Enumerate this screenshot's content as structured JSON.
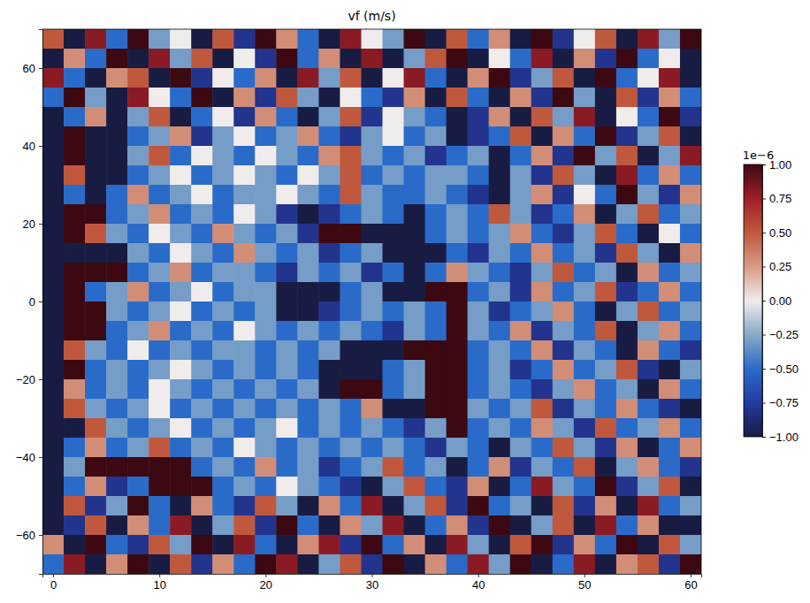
{
  "chart_data": {
    "type": "heatmap",
    "title": "vf (m/s)",
    "xlim": [
      -1,
      61
    ],
    "ylim": [
      -70,
      70
    ],
    "xticks": [
      0,
      10,
      20,
      30,
      40,
      50,
      60
    ],
    "yticks": [
      {
        "value": -60,
        "label": "−60"
      },
      {
        "value": -40,
        "label": "−40"
      },
      {
        "value": -20,
        "label": "−20"
      },
      0,
      20,
      40,
      60
    ],
    "x_edges": [
      -1,
      1,
      3,
      5,
      7,
      9,
      11,
      13,
      15,
      17,
      19,
      21,
      23,
      25,
      27,
      29,
      31,
      33,
      35,
      37,
      39,
      41,
      43,
      45,
      47,
      49,
      51,
      53,
      55,
      57,
      59,
      61
    ],
    "y_edges": [
      70,
      65,
      60,
      55,
      50,
      45,
      40,
      35,
      30,
      25,
      20,
      15,
      10,
      5,
      0,
      -5,
      -10,
      -15,
      -20,
      -25,
      -30,
      -35,
      -40,
      -45,
      -50,
      -55,
      -60,
      -65,
      -70
    ],
    "cells": [
      [
        0.5,
        -1,
        0.8,
        -0.5,
        1,
        -0.3,
        0,
        -1,
        0.5,
        -0.8,
        1,
        0.3,
        -0.5,
        -1,
        0.8,
        0,
        -0.3,
        1,
        -1,
        0.5,
        -0.5,
        0.3,
        -1,
        1,
        -0.8,
        0,
        0.5,
        -1,
        0.8,
        -0.3,
        1
      ],
      [
        -1,
        0.3,
        -0.5,
        1,
        -1,
        0.8,
        -0.3,
        0.5,
        -1,
        0,
        -0.8,
        1,
        -0.5,
        0.3,
        -1,
        0.8,
        -1,
        -0.3,
        0.5,
        1,
        -1,
        0,
        -0.5,
        0.8,
        -1,
        0.3,
        -0.8,
        1,
        -0.5,
        0,
        -1
      ],
      [
        0.8,
        -0.5,
        -1,
        0.3,
        0.5,
        -1,
        1,
        -0.8,
        0,
        -0.5,
        0.3,
        -1,
        0.8,
        -0.3,
        0.5,
        -1,
        0,
        0.8,
        -0.5,
        -1,
        0.3,
        1,
        -0.8,
        -0.3,
        0.5,
        -1,
        1,
        -0.5,
        0,
        0.8,
        -1
      ],
      [
        -0.5,
        1,
        -0.3,
        -1,
        0.8,
        0,
        -0.5,
        1,
        -1,
        0.3,
        -0.8,
        0.5,
        -0.3,
        -1,
        0,
        -0.5,
        -0.8,
        0.3,
        -1,
        0.5,
        -0.5,
        -1,
        0.3,
        -0.8,
        1,
        -0.3,
        -1,
        0.5,
        -0.8,
        0.3,
        -0.5
      ],
      [
        -1,
        -0.5,
        0.3,
        -1,
        -0.3,
        0.5,
        -1,
        -0.5,
        0,
        -0.8,
        0.3,
        -0.5,
        -1,
        -0.3,
        0.5,
        -0.8,
        0,
        -0.3,
        -0.5,
        -1,
        -0.8,
        0.3,
        -1,
        0.5,
        -0.3,
        0.8,
        -1,
        0,
        -0.5,
        1,
        -0.8
      ],
      [
        -1,
        1,
        -1,
        -1,
        -0.5,
        -0.3,
        0.3,
        -0.8,
        -0.3,
        0,
        -0.5,
        -0.3,
        0.3,
        -0.5,
        -0.8,
        -0.3,
        0,
        -0.5,
        -0.3,
        -1,
        -0.8,
        -0.5,
        0.5,
        -1,
        0.3,
        -0.5,
        1,
        -0.8,
        -0.3,
        0.5,
        -1
      ],
      [
        -1,
        1,
        -1,
        -1,
        -0.3,
        0.5,
        -0.5,
        0,
        -0.3,
        -0.5,
        0,
        -0.3,
        -0.5,
        0.3,
        0.5,
        -0.3,
        -0.5,
        -0.3,
        -0.8,
        -0.5,
        -0.3,
        -1,
        -0.5,
        0.3,
        -0.8,
        1,
        -0.3,
        0.5,
        -1,
        -0.3,
        0.8
      ],
      [
        -1,
        0.5,
        -1,
        -1,
        -0.5,
        -0.3,
        0,
        -0.5,
        -0.3,
        0,
        -0.3,
        -0.5,
        0,
        -0.3,
        0.5,
        -0.5,
        -0.3,
        -0.5,
        -0.3,
        -0.3,
        -0.5,
        -1,
        -0.3,
        -0.8,
        0.5,
        -0.3,
        -1,
        0.8,
        -0.5,
        0.3,
        -0.5
      ],
      [
        -1,
        -0.5,
        -1,
        -0.5,
        0.3,
        -0.5,
        -0.3,
        0,
        -0.5,
        -0.3,
        -0.3,
        0,
        -0.3,
        -0.5,
        0.5,
        -0.3,
        -0.5,
        -0.5,
        -0.3,
        -0.5,
        -0.8,
        -1,
        -0.3,
        0.3,
        -0.8,
        0,
        -0.5,
        1,
        -0.3,
        -0.8,
        0.3
      ],
      [
        -1,
        1,
        1,
        -0.5,
        -0.3,
        0.3,
        -0.5,
        -0.3,
        -0.5,
        0,
        -0.3,
        -0.8,
        -1,
        -0.8,
        -0.5,
        -0.3,
        -0.5,
        -1,
        -0.5,
        -0.3,
        -0.5,
        0.5,
        -0.3,
        -0.8,
        -0.5,
        0.3,
        -1,
        -0.3,
        0.5,
        -0.5,
        -0.3
      ],
      [
        -1,
        1,
        0.5,
        -0.3,
        -0.5,
        0,
        -0.3,
        -0.5,
        0.3,
        -0.3,
        -0.5,
        -0.3,
        -0.8,
        1,
        1,
        -1,
        -1,
        -1,
        -0.5,
        -0.3,
        -0.5,
        -0.3,
        0.3,
        -0.5,
        -0.8,
        -0.3,
        0.5,
        -0.5,
        -1,
        0,
        -0.5
      ],
      [
        -1,
        -1,
        -1,
        -1,
        -0.3,
        -0.5,
        0,
        -0.3,
        -0.5,
        0.3,
        -0.3,
        -0.5,
        -0.3,
        -0.8,
        -0.5,
        -0.3,
        -1,
        -1,
        -1,
        -0.5,
        -0.8,
        -0.3,
        -0.5,
        0.3,
        -0.5,
        -0.3,
        -0.8,
        0.5,
        -0.3,
        -1,
        0.3
      ],
      [
        -1,
        1,
        1,
        1,
        -0.5,
        -0.3,
        0.3,
        -0.5,
        -0.3,
        -0.3,
        -0.5,
        -0.8,
        -0.3,
        -0.5,
        -0.3,
        -0.8,
        -0.5,
        -1,
        -0.5,
        0.3,
        -0.3,
        -0.5,
        -0.8,
        -0.3,
        0.5,
        -0.5,
        -0.3,
        -1,
        0.3,
        -0.5,
        -0.3
      ],
      [
        -1,
        1,
        -0.5,
        -0.3,
        0.3,
        -0.5,
        -0.3,
        0,
        -0.5,
        -0.3,
        -0.3,
        -1,
        -1,
        -1,
        -0.5,
        -0.3,
        -1,
        -1,
        1,
        1,
        -0.5,
        -0.3,
        -0.8,
        0.3,
        -0.5,
        -0.3,
        0.5,
        -0.8,
        -0.5,
        0.3,
        -0.5
      ],
      [
        -1,
        1,
        1,
        -0.3,
        -0.5,
        -0.3,
        0,
        -0.5,
        -0.3,
        -0.5,
        -0.3,
        -1,
        -1,
        -0.8,
        -0.5,
        -0.3,
        -0.5,
        -0.3,
        -0.5,
        1,
        -0.3,
        -0.8,
        -0.5,
        -0.3,
        0.3,
        -0.5,
        -1,
        -0.3,
        0.5,
        -0.5,
        -0.3
      ],
      [
        -1,
        1,
        1,
        -0.5,
        -0.3,
        0.3,
        -0.5,
        -0.3,
        -0.5,
        0,
        -0.3,
        -0.5,
        -0.3,
        -0.5,
        -0.3,
        -0.5,
        -0.8,
        -0.3,
        -0.5,
        1,
        -0.3,
        -0.5,
        0.3,
        -0.8,
        -0.3,
        -0.5,
        0.5,
        -1,
        -0.3,
        0.3,
        -0.5
      ],
      [
        -1,
        0.5,
        -0.3,
        -0.5,
        0,
        -0.5,
        -0.3,
        -0.5,
        -0.3,
        -0.3,
        -0.5,
        -0.3,
        -0.5,
        -0.3,
        -1,
        -1,
        -1,
        1,
        1,
        1,
        -0.5,
        -0.3,
        -0.5,
        0.3,
        -0.8,
        -0.3,
        -0.5,
        -1,
        0.3,
        -0.5,
        -0.8
      ],
      [
        -1,
        1,
        -0.5,
        -0.3,
        -0.5,
        -0.3,
        0,
        -0.3,
        -0.5,
        -0.3,
        -0.5,
        -0.3,
        -0.5,
        -1,
        -1,
        -1,
        -0.5,
        -0.3,
        1,
        1,
        -0.5,
        -0.3,
        -0.8,
        -0.5,
        0.3,
        -0.5,
        -0.3,
        0.5,
        -0.8,
        -1,
        -0.3
      ],
      [
        -1,
        0.3,
        -0.5,
        -0.3,
        -0.5,
        0,
        -0.3,
        -0.5,
        -0.3,
        -0.5,
        -0.3,
        -0.5,
        -0.3,
        -1,
        1,
        1,
        -0.5,
        -0.3,
        1,
        1,
        -0.5,
        -0.3,
        -0.5,
        -0.8,
        -0.3,
        0.3,
        -0.5,
        -0.3,
        -1,
        0.3,
        -0.5
      ],
      [
        -1,
        0.5,
        -0.3,
        -0.5,
        -0.3,
        0,
        -0.5,
        -0.3,
        -0.5,
        -0.3,
        -0.5,
        -0.3,
        -0.5,
        -0.3,
        -0.5,
        0.3,
        -1,
        -1,
        1,
        1,
        -0.3,
        -0.5,
        -0.3,
        0.5,
        -0.8,
        -0.3,
        -0.5,
        0.3,
        -0.5,
        -0.8,
        -1
      ],
      [
        -1,
        -1,
        0.5,
        -0.3,
        -0.5,
        -0.3,
        0,
        -0.5,
        -0.3,
        -0.5,
        -0.3,
        0,
        -0.5,
        -0.3,
        -0.5,
        -0.3,
        -0.5,
        -0.8,
        -0.3,
        1,
        -0.5,
        -0.3,
        -0.5,
        0.3,
        -0.3,
        -0.8,
        0.5,
        -0.5,
        -0.3,
        0.3,
        -0.5
      ],
      [
        -1,
        -0.5,
        0.3,
        -0.5,
        -0.3,
        0.5,
        -0.5,
        -0.3,
        -0.5,
        0,
        -0.3,
        -0.5,
        -0.3,
        -0.5,
        -0.3,
        -0.5,
        -0.3,
        -0.5,
        -0.8,
        -0.3,
        -0.5,
        -1,
        -0.3,
        -0.5,
        0.5,
        -0.3,
        -0.8,
        0.3,
        -1,
        -0.5,
        0.3
      ],
      [
        -1,
        -0.3,
        1,
        1,
        1,
        1,
        1,
        -0.5,
        -0.3,
        -0.5,
        0.3,
        -0.5,
        -0.3,
        -0.8,
        -0.5,
        -0.3,
        0.5,
        -0.5,
        -0.3,
        -1,
        -0.5,
        0.3,
        -0.8,
        -0.3,
        -0.5,
        0.5,
        -1,
        -0.3,
        0.3,
        -0.5,
        -0.8
      ],
      [
        -1,
        -0.5,
        0.3,
        -0.8,
        -0.5,
        1,
        1,
        1,
        -0.5,
        -0.3,
        -0.5,
        0,
        -0.3,
        -0.5,
        -0.8,
        -1,
        -0.3,
        0.5,
        -0.5,
        -0.8,
        0.3,
        -1,
        -0.5,
        0.8,
        -0.3,
        -0.5,
        1,
        -0.8,
        -0.3,
        0.5,
        -1
      ],
      [
        -1,
        0.5,
        -0.8,
        -0.3,
        1,
        -0.5,
        -1,
        0.3,
        -0.5,
        -0.8,
        0.5,
        -0.3,
        -1,
        0.3,
        -0.5,
        0.8,
        -1,
        -0.3,
        0.5,
        -0.8,
        1,
        -0.5,
        -0.3,
        -1,
        0.5,
        -0.8,
        0.3,
        -1,
        0.8,
        -0.5,
        -0.3
      ],
      [
        -1,
        -0.8,
        0.5,
        -1,
        0.3,
        -0.5,
        0.8,
        -1,
        -0.3,
        0.5,
        -0.8,
        1,
        -0.5,
        -1,
        0.3,
        -0.3,
        0.8,
        -1,
        -0.5,
        0.3,
        -0.8,
        1,
        -1,
        -0.3,
        0.5,
        -1,
        0.8,
        -0.5,
        0.3,
        -1,
        -1
      ],
      [
        0.3,
        -1,
        1,
        -0.5,
        -0.8,
        0.5,
        -0.3,
        1,
        -1,
        0.8,
        -0.5,
        -1,
        0.3,
        0.8,
        -0.8,
        1,
        -0.5,
        0.3,
        -1,
        0.8,
        -0.3,
        -1,
        0.5,
        1,
        -0.8,
        0.3,
        -0.5,
        1,
        -1,
        0.5,
        -0.3
      ],
      [
        -0.5,
        0.8,
        -1,
        0.3,
        1,
        -1,
        0.5,
        -0.8,
        0.3,
        -0.5,
        1,
        0.8,
        -1,
        -0.3,
        0.5,
        -0.8,
        1,
        -1,
        0.3,
        -0.5,
        0.8,
        -0.3,
        1,
        -1,
        -0.5,
        0.8,
        -1,
        0.3,
        0.5,
        -0.8,
        1
      ]
    ],
    "colorbar": {
      "lim": [
        -1,
        1
      ],
      "ticks": [
        {
          "value": -1,
          "label": "−1.00"
        },
        {
          "value": -0.75,
          "label": "−0.75"
        },
        {
          "value": -0.5,
          "label": "−0.50"
        },
        {
          "value": -0.25,
          "label": "−0.25"
        },
        {
          "value": 0,
          "label": "0.00"
        },
        {
          "value": 0.25,
          "label": "0.25"
        },
        {
          "value": 0.5,
          "label": "0.50"
        },
        {
          "value": 0.75,
          "label": "0.75"
        },
        {
          "value": 1,
          "label": "1.00"
        }
      ],
      "offset_label": "1e−6"
    }
  }
}
